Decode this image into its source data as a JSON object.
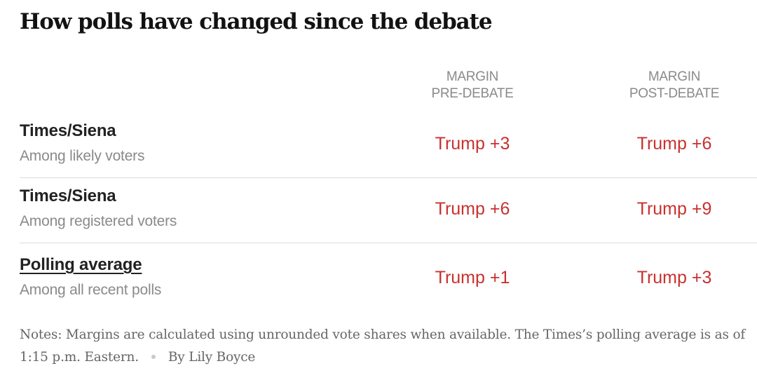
{
  "title": "How polls have changed since the debate",
  "columns": {
    "pre": [
      "MARGIN",
      "PRE-DEBATE"
    ],
    "post": [
      "MARGIN",
      "POST-DEBATE"
    ]
  },
  "rows": [
    {
      "label": "Times/Siena",
      "sublabel": "Among likely voters",
      "pre": "Trump +3",
      "post": "Trump +6",
      "link": false
    },
    {
      "label": "Times/Siena",
      "sublabel": "Among registered voters",
      "pre": "Trump +6",
      "post": "Trump +9",
      "link": false
    },
    {
      "label": "Polling average",
      "sublabel": "Among all recent polls",
      "pre": "Trump +1",
      "post": "Trump +3",
      "link": true
    }
  ],
  "notes": "Notes: Margins are calculated using unrounded vote shares when available. The Times’s polling average is as of 1:15 p.m. Eastern.",
  "byline": "By Lily Boyce",
  "colors": {
    "margin_text": "#c8312f",
    "header_text": "#8a8a8a",
    "divider": "#dcdcdc"
  },
  "chart_data": {
    "type": "table",
    "title": "How polls have changed since the debate",
    "columns": [
      "",
      "MARGIN PRE-DEBATE",
      "MARGIN POST-DEBATE"
    ],
    "rows": [
      {
        "poll": "Times/Siena",
        "subgroup": "Among likely voters",
        "pre_debate": "Trump +3",
        "post_debate": "Trump +6"
      },
      {
        "poll": "Times/Siena",
        "subgroup": "Among registered voters",
        "pre_debate": "Trump +6",
        "post_debate": "Trump +9"
      },
      {
        "poll": "Polling average",
        "subgroup": "Among all recent polls",
        "pre_debate": "Trump +1",
        "post_debate": "Trump +3"
      }
    ]
  }
}
